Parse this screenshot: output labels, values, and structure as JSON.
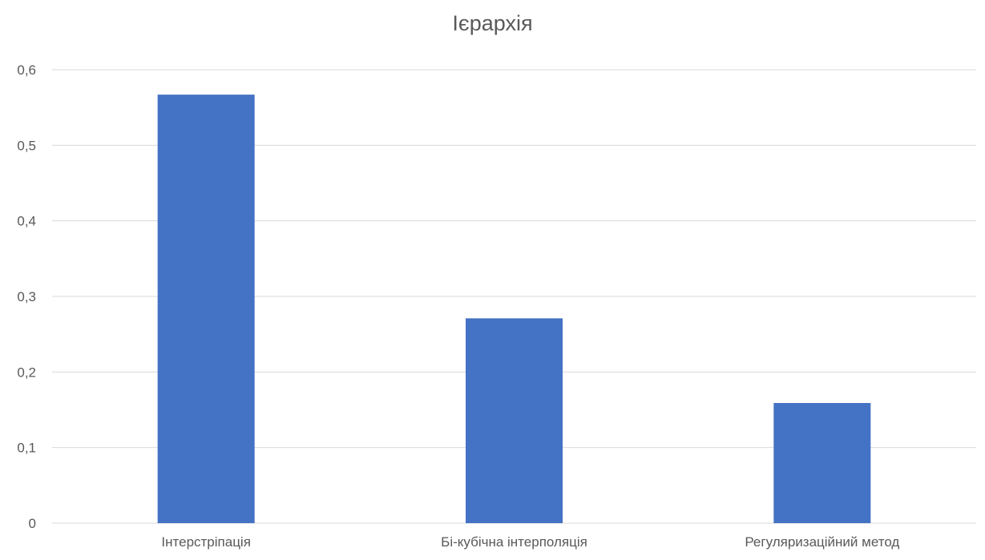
{
  "chart_data": {
    "type": "bar",
    "title": "Ієрархія",
    "categories": [
      "Інтерстріпація",
      "Бі-кубічна інтерполяція",
      "Регуляризаційний метод"
    ],
    "values": [
      0.567,
      0.271,
      0.159
    ],
    "ylim": [
      0,
      0.6
    ],
    "yticks": [
      0,
      0.1,
      0.2,
      0.3,
      0.4,
      0.5,
      0.6
    ],
    "ytick_labels": [
      "0",
      "0,1",
      "0,2",
      "0,3",
      "0,4",
      "0,5",
      "0,6"
    ],
    "grid": true,
    "legend": false,
    "bar_color": "#4472C4",
    "grid_color": "#D9D9D9"
  }
}
